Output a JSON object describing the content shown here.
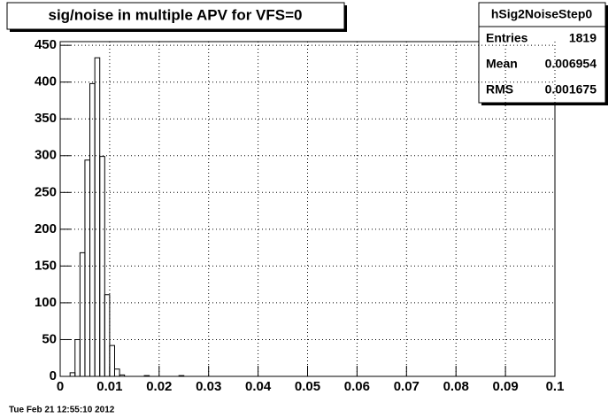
{
  "chart_data": {
    "type": "histogram",
    "title": "sig/noise in multiple APV for VFS=0",
    "bins": [
      0.002,
      0.003,
      0.004,
      0.005,
      0.006,
      0.007,
      0.008,
      0.009,
      0.01,
      0.011,
      0.012,
      0.013,
      0.014,
      0.015,
      0.016,
      0.017,
      0.018,
      0.019,
      0.02,
      0.021,
      0.022,
      0.023,
      0.024,
      0.025
    ],
    "values": [
      5,
      50,
      168,
      294,
      398,
      433,
      299,
      111,
      42,
      10,
      2,
      0,
      0,
      0,
      0,
      1,
      0,
      0,
      0,
      0,
      0,
      0,
      1
    ],
    "color": "#000000",
    "xlim": [
      0,
      0.1
    ],
    "xticks": [
      0,
      0.01,
      0.02,
      0.03,
      0.04,
      0.05,
      0.06,
      0.07,
      0.08,
      0.09,
      0.1
    ],
    "ylim": [
      0,
      455
    ],
    "yticks": [
      0,
      50,
      100,
      150,
      200,
      250,
      300,
      350,
      400,
      450
    ],
    "grid": true,
    "stats": {
      "title": "hSig2NoiseStep0",
      "rows": [
        [
          "Entries",
          1819
        ],
        [
          "Mean",
          0.006954
        ],
        [
          "RMS",
          0.001675
        ]
      ]
    },
    "footer": "Tue Feb 21 12:55:10 2012"
  }
}
